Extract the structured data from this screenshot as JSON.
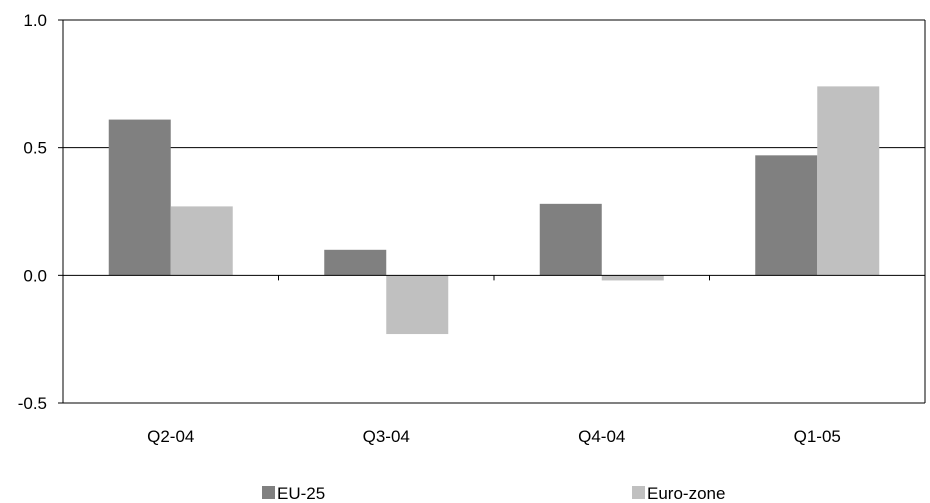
{
  "chart_data": {
    "type": "bar",
    "categories": [
      "Q2-04",
      "Q3-04",
      "Q4-04",
      "Q1-05"
    ],
    "series": [
      {
        "name": "EU-25",
        "values": [
          0.61,
          0.1,
          0.28,
          0.47
        ],
        "color": "#808080"
      },
      {
        "name": "Euro-zone",
        "values": [
          0.27,
          -0.23,
          -0.02,
          0.74
        ],
        "color": "#c0c0c0"
      }
    ],
    "yticks": [
      "1.0",
      "0.5",
      "0.0",
      "-0.5"
    ],
    "ylim": [
      -0.5,
      1.0
    ],
    "grid": true,
    "legend_position": "bottom"
  }
}
